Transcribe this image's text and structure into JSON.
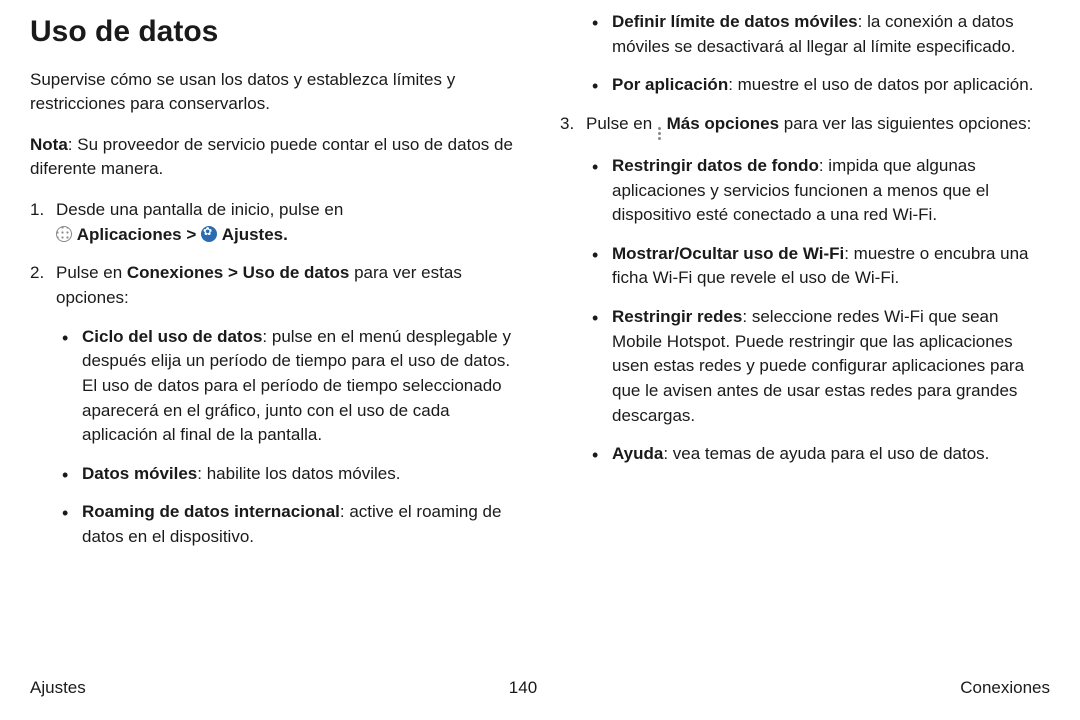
{
  "title": "Uso de datos",
  "intro": "Supervise cómo se usan los datos y establezca límites y restricciones para conservarlos.",
  "note_label": "Nota",
  "note_text": ": Su proveedor de servicio puede contar el uso de datos de diferente manera.",
  "step1_a": "Desde una pantalla de inicio, pulse en",
  "step1_apps": "Aplicaciones",
  "step1_gt": " > ",
  "step1_settings": "Ajustes",
  "step2_a": "Pulse en ",
  "step2_path": "Conexiones > Uso de datos",
  "step2_b": " para ver estas opciones:",
  "s2b1_t": "Ciclo del uso de datos",
  "s2b1_d": ": pulse en el menú desplegable y después elija un período de tiempo para el uso de datos. El uso de datos para el período de tiempo seleccionado aparecerá en el gráfico, junto con el uso de cada aplicación al final de la pantalla.",
  "s2b2_t": "Datos móviles",
  "s2b2_d": ": habilite los datos móviles.",
  "s2b3_t": "Roaming de datos internacional",
  "s2b3_d": ": active el roaming de datos en el dispositivo.",
  "c2b1_t": "Definir límite de datos móviles",
  "c2b1_d": ": la conexión a datos móviles se desactivará al llegar al límite especificado.",
  "c2b2_t": "Por aplicación",
  "c2b2_d": ": muestre el uso de datos por aplicación.",
  "step3_a": "Pulse en ",
  "step3_more": "Más opciones",
  "step3_b": " para ver las siguientes opciones:",
  "s3b1_t": "Restringir datos de fondo",
  "s3b1_d": ": impida que algunas aplicaciones y servicios funcionen a menos que el dispositivo esté conectado a una red Wi-Fi.",
  "s3b2_t": "Mostrar/Ocultar uso de Wi-Fi",
  "s3b2_d": ": muestre o encubra una ficha Wi-Fi que revele el uso de Wi-Fi.",
  "s3b3_t": "Restringir redes",
  "s3b3_d": ": seleccione redes Wi-Fi que sean Mobile Hotspot. Puede restringir que las aplicaciones usen estas redes y puede configurar aplicaciones para que le avisen antes de usar estas redes para grandes descargas.",
  "s3b4_t": "Ayuda",
  "s3b4_d": ": vea temas de ayuda para el uso de datos.",
  "footer_left": "Ajustes",
  "footer_center": "140",
  "footer_right": "Conexiones"
}
